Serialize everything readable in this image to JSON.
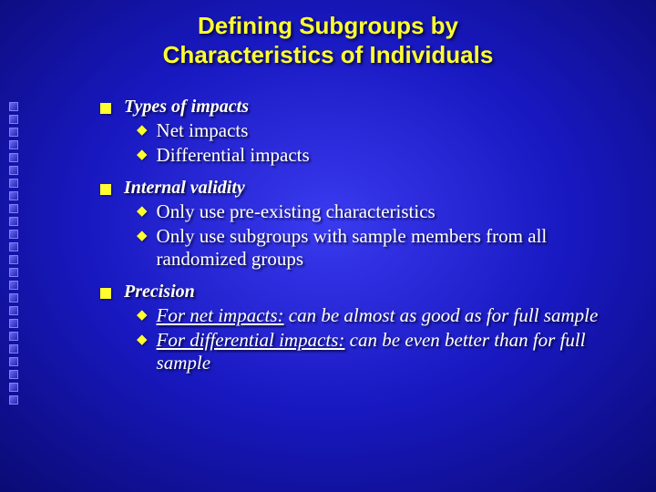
{
  "title": {
    "line1": "Defining Subgroups by",
    "line2": "Characteristics of Individuals",
    "fontsize": 26,
    "color": "#ffff30"
  },
  "left_square_count": 24,
  "bullet_color": "#ffff30",
  "text_color": "#ffffff",
  "l1_fontsize": 20,
  "l2_fontsize": 21,
  "diamond_fontsize": 15,
  "sections": [
    {
      "heading": "Types of impacts",
      "items": [
        {
          "pre": "",
          "u": "",
          "post": "Net impacts"
        },
        {
          "pre": "",
          "u": "",
          "post": "Differential impacts"
        }
      ]
    },
    {
      "heading": "Internal validity",
      "items": [
        {
          "pre": "",
          "u": "",
          "post": "Only use pre-existing characteristics"
        },
        {
          "pre": "",
          "u": "",
          "post": "Only use subgroups with sample members from all randomized groups"
        }
      ]
    },
    {
      "heading": "Precision",
      "italic_items": true,
      "items": [
        {
          "pre": "",
          "u": "For net impacts:",
          "post": " can be almost as good as for full sample"
        },
        {
          "pre": "",
          "u": "For differential impacts:",
          "post": " can be even better than for full sample"
        }
      ]
    }
  ]
}
